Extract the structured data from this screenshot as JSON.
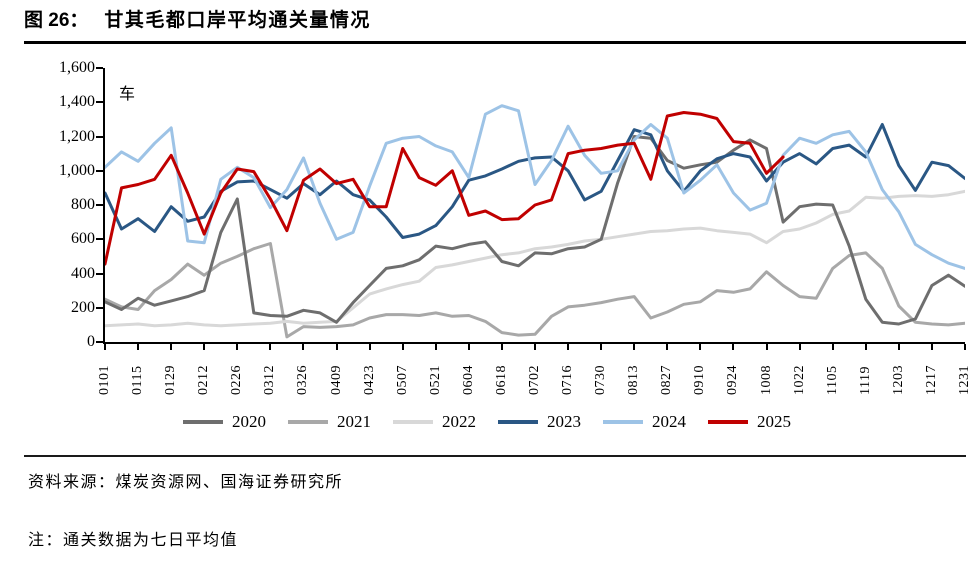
{
  "figure": {
    "label": "图 26：",
    "title": "甘其毛都口岸平均通关量情况"
  },
  "footer": {
    "source": "资料来源：煤炭资源网、国海证券研究所",
    "note": "注：通关数据为七日平均值"
  },
  "chart_data": {
    "type": "line",
    "title": "甘其毛都口岸平均通关量情况",
    "unit_label": "车",
    "grid": "off",
    "legend_position": "bottom",
    "y_axis": {
      "min": 0,
      "max": 1600,
      "step": 200,
      "tick_labels": [
        "0",
        "200",
        "400",
        "600",
        "800",
        "1,000",
        "1,200",
        "1,400",
        "1,600"
      ]
    },
    "x_axis": {
      "domain_days": 364,
      "tick_interval_days": 14,
      "tick_labels": [
        "0101",
        "0115",
        "0129",
        "0212",
        "0226",
        "0312",
        "0326",
        "0409",
        "0423",
        "0507",
        "0521",
        "0604",
        "0618",
        "0702",
        "0716",
        "0730",
        "0813",
        "0827",
        "0910",
        "0924",
        "1008",
        "1022",
        "1105",
        "1119",
        "1203",
        "1217",
        "1231"
      ]
    },
    "sample_interval_days": 7,
    "series": [
      {
        "name": "2021",
        "color": "#a8a8a8",
        "values": [
          250,
          205,
          190,
          300,
          365,
          455,
          390,
          460,
          500,
          545,
          575,
          30,
          90,
          85,
          90,
          100,
          140,
          160,
          160,
          155,
          170,
          150,
          155,
          120,
          55,
          40,
          45,
          150,
          205,
          215,
          230,
          250,
          265,
          140,
          175,
          220,
          235,
          300,
          290,
          310,
          410,
          330,
          265,
          255,
          430,
          505,
          520,
          430,
          210,
          115,
          105,
          100,
          110
        ]
      },
      {
        "name": "2022",
        "color": "#d8d8d8",
        "values": [
          95,
          100,
          105,
          95,
          100,
          110,
          100,
          95,
          100,
          105,
          110,
          120,
          110,
          115,
          120,
          200,
          280,
          310,
          335,
          355,
          435,
          450,
          470,
          490,
          510,
          520,
          545,
          555,
          570,
          590,
          600,
          615,
          630,
          645,
          650,
          660,
          665,
          650,
          640,
          630,
          580,
          645,
          660,
          695,
          745,
          765,
          845,
          840,
          850,
          855,
          850,
          860,
          880
        ]
      },
      {
        "name": "2020",
        "color": "#6e6e6e",
        "values": [
          235,
          190,
          255,
          215,
          240,
          265,
          300,
          640,
          835,
          170,
          155,
          150,
          185,
          170,
          115,
          230,
          330,
          430,
          445,
          480,
          560,
          545,
          570,
          585,
          470,
          445,
          520,
          515,
          545,
          555,
          600,
          930,
          1200,
          1190,
          1060,
          1015,
          1035,
          1050,
          1120,
          1180,
          1130,
          700,
          790,
          805,
          800,
          560,
          250,
          115,
          105,
          135,
          330,
          390,
          325
        ]
      },
      {
        "name": "2023",
        "color": "#2a5784",
        "values": [
          870,
          660,
          720,
          645,
          790,
          705,
          730,
          880,
          935,
          940,
          890,
          840,
          925,
          860,
          940,
          860,
          830,
          730,
          610,
          630,
          680,
          790,
          945,
          970,
          1010,
          1055,
          1075,
          1080,
          1000,
          830,
          880,
          1060,
          1240,
          1210,
          1000,
          880,
          1000,
          1070,
          1100,
          1080,
          940,
          1050,
          1100,
          1040,
          1130,
          1150,
          1080,
          1270,
          1030,
          885,
          1050,
          1030,
          955
        ]
      },
      {
        "name": "2024",
        "color": "#9dc3e6",
        "values": [
          1020,
          1110,
          1055,
          1160,
          1250,
          590,
          580,
          950,
          1020,
          960,
          785,
          890,
          1075,
          810,
          600,
          640,
          910,
          1160,
          1190,
          1200,
          1145,
          1110,
          960,
          1330,
          1380,
          1350,
          920,
          1060,
          1260,
          1090,
          985,
          1000,
          1180,
          1270,
          1190,
          870,
          945,
          1035,
          870,
          770,
          810,
          1090,
          1190,
          1160,
          1210,
          1230,
          1110,
          890,
          760,
          570,
          510,
          460,
          430
        ]
      },
      {
        "name": "2025",
        "color": "#c00000",
        "values": [
          455,
          900,
          920,
          950,
          1090,
          870,
          630,
          870,
          1010,
          995,
          835,
          650,
          945,
          1010,
          925,
          950,
          790,
          790,
          1130,
          960,
          915,
          1000,
          740,
          765,
          715,
          720,
          800,
          830,
          1100,
          1120,
          1130,
          1150,
          1160,
          950,
          1320,
          1340,
          1330,
          1305,
          1170,
          1160,
          985,
          1080
        ]
      }
    ],
    "legend_order": [
      "2020",
      "2021",
      "2022",
      "2023",
      "2024",
      "2025"
    ]
  }
}
